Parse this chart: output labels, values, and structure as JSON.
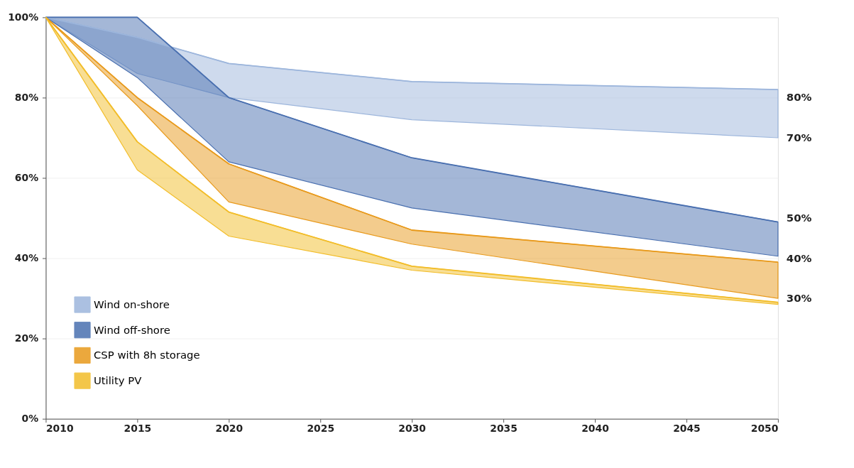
{
  "chart_data": {
    "type": "line",
    "xlim": [
      2010,
      2050
    ],
    "xticks": [
      2010,
      2015,
      2020,
      2025,
      2030,
      2035,
      2040,
      2045,
      2050
    ],
    "ylim": [
      0,
      100
    ],
    "yticks": [
      {
        "value": 0,
        "label": "0%"
      },
      {
        "value": 20,
        "label": "20%"
      },
      {
        "value": 40,
        "label": "40%"
      },
      {
        "value": 60,
        "label": "60%"
      },
      {
        "value": 80,
        "label": "80%"
      },
      {
        "value": 100,
        "label": "100%"
      }
    ],
    "grid": "y",
    "legend": "bottom left",
    "series": [
      {
        "name": "Wind on-shore",
        "color": "#9db6dc",
        "x": [
          2010,
          2015,
          2020,
          2030,
          2050
        ],
        "values": [
          100,
          95,
          88.5,
          84,
          82
        ],
        "upper": [
          100,
          95,
          88.5,
          84,
          82
        ],
        "lower": [
          100,
          86,
          80,
          74.5,
          70
        ]
      },
      {
        "name": "Wind off-shore",
        "color": "#4a70b0",
        "x": [
          2010,
          2015,
          2020,
          2030,
          2050
        ],
        "values": [
          100,
          100,
          80,
          65,
          49
        ],
        "upper": [
          100,
          100,
          80,
          65,
          49
        ],
        "lower": [
          100,
          85,
          64,
          52.5,
          40.5
        ]
      },
      {
        "name": "CSP with 8h storage",
        "color": "#e89a1c",
        "x": [
          2010,
          2015,
          2020,
          2030,
          2050
        ],
        "values": [
          100,
          80,
          63.5,
          47,
          39
        ],
        "upper": [
          100,
          80,
          63.5,
          47,
          39
        ],
        "lower": [
          100,
          78,
          54,
          43.5,
          30
        ]
      },
      {
        "name": "Utility PV",
        "color": "#f2bd2a",
        "x": [
          2010,
          2015,
          2020,
          2030,
          2050
        ],
        "values": [
          100,
          69,
          51.5,
          38,
          29
        ],
        "upper": [
          100,
          69,
          51.5,
          38,
          29
        ],
        "lower": [
          100,
          62,
          45.5,
          37,
          28.5
        ]
      }
    ],
    "annotations": [
      "80%",
      "70%",
      "50%",
      "40%",
      "30%"
    ]
  }
}
